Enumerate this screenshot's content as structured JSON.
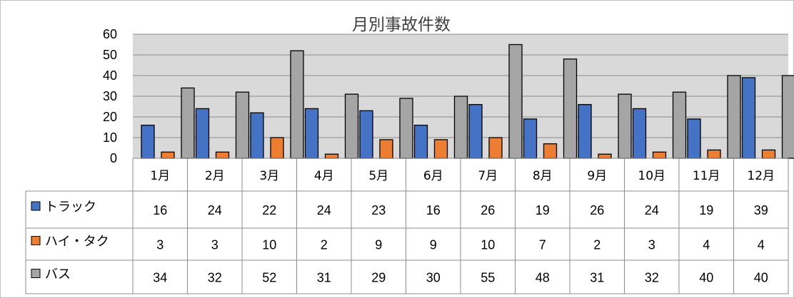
{
  "chart_data": {
    "type": "bar",
    "title": "月別事故件数",
    "categories": [
      "1月",
      "2月",
      "3月",
      "4月",
      "5月",
      "6月",
      "7月",
      "8月",
      "9月",
      "10月",
      "11月",
      "12月"
    ],
    "series": [
      {
        "name": "トラック",
        "color": "#4472C4",
        "values": [
          16,
          24,
          22,
          24,
          23,
          16,
          26,
          19,
          26,
          24,
          19,
          39
        ]
      },
      {
        "name": "ハイ・タク",
        "color": "#ED7D31",
        "values": [
          3,
          3,
          10,
          2,
          9,
          9,
          10,
          7,
          2,
          3,
          4,
          4
        ]
      },
      {
        "name": "バス",
        "color": "#A5A5A5",
        "values": [
          34,
          32,
          52,
          31,
          29,
          30,
          55,
          48,
          31,
          32,
          40,
          40
        ]
      }
    ],
    "ylim": [
      0,
      60
    ],
    "yticks": [
      0,
      10,
      20,
      30,
      40,
      50,
      60
    ],
    "grid": true,
    "plot_background": "#D9D9D9",
    "legend_placement": "data-table-left",
    "data_table": true
  }
}
